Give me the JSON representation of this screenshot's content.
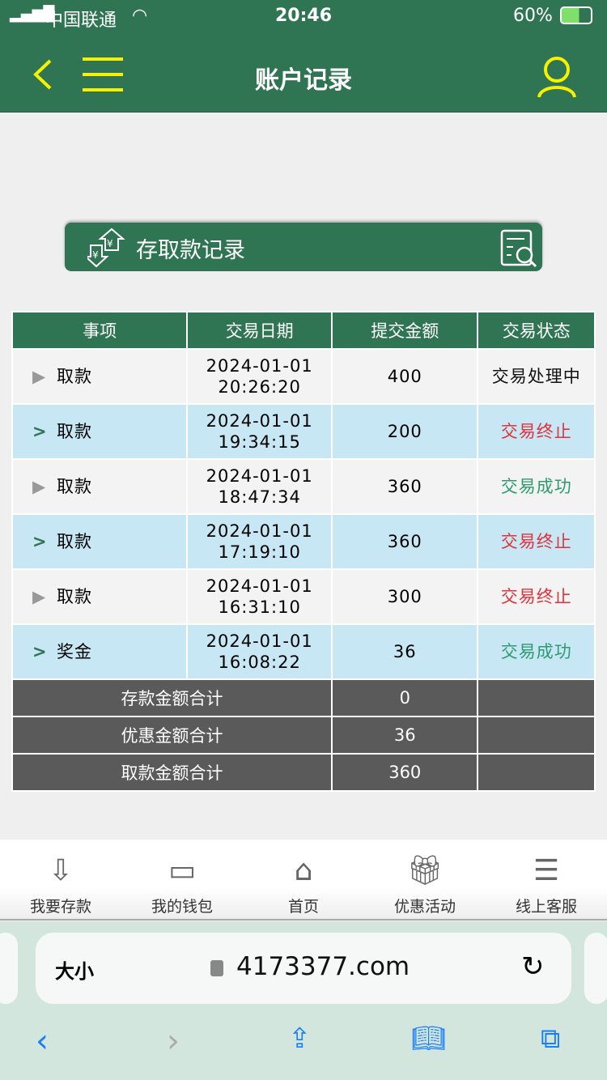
{
  "status": {
    "carrier": "中国联通",
    "time": "20:46",
    "battery": "60%"
  },
  "header": {
    "title": "账户记录"
  },
  "banner": {
    "title": "存取款记录"
  },
  "table": {
    "headers": [
      "事项",
      "交易日期",
      "提交金额",
      "交易状态"
    ],
    "rows": [
      {
        "item": "取款",
        "date": "2024-01-01",
        "time": "20:26:20",
        "amount": "400",
        "status": "交易处理中",
        "status_color": "#111111"
      },
      {
        "item": "取款",
        "date": "2024-01-01",
        "time": "19:34:15",
        "amount": "200",
        "status": "交易终止",
        "status_color": "#e0323c"
      },
      {
        "item": "取款",
        "date": "2024-01-01",
        "time": "18:47:34",
        "amount": "360",
        "status": "交易成功",
        "status_color": "#2e9a73"
      },
      {
        "item": "取款",
        "date": "2024-01-01",
        "time": "17:19:10",
        "amount": "360",
        "status": "交易终止",
        "status_color": "#e0323c"
      },
      {
        "item": "取款",
        "date": "2024-01-01",
        "time": "16:31:10",
        "amount": "300",
        "status": "交易终止",
        "status_color": "#e0323c"
      },
      {
        "item": "奖金",
        "date": "2024-01-01",
        "time": "16:08:22",
        "amount": "36",
        "status": "交易成功",
        "status_color": "#2e9a73"
      }
    ],
    "summary": [
      {
        "label": "存款金额合计",
        "value": "0"
      },
      {
        "label": "优惠金额合计",
        "value": "36"
      },
      {
        "label": "取款金额合计",
        "value": "360"
      }
    ]
  },
  "nav": [
    "我要存款",
    "我的钱包",
    "首页",
    "优惠活动",
    "线上客服"
  ],
  "browser": {
    "text_size": "大小",
    "url": "4173377.com"
  }
}
